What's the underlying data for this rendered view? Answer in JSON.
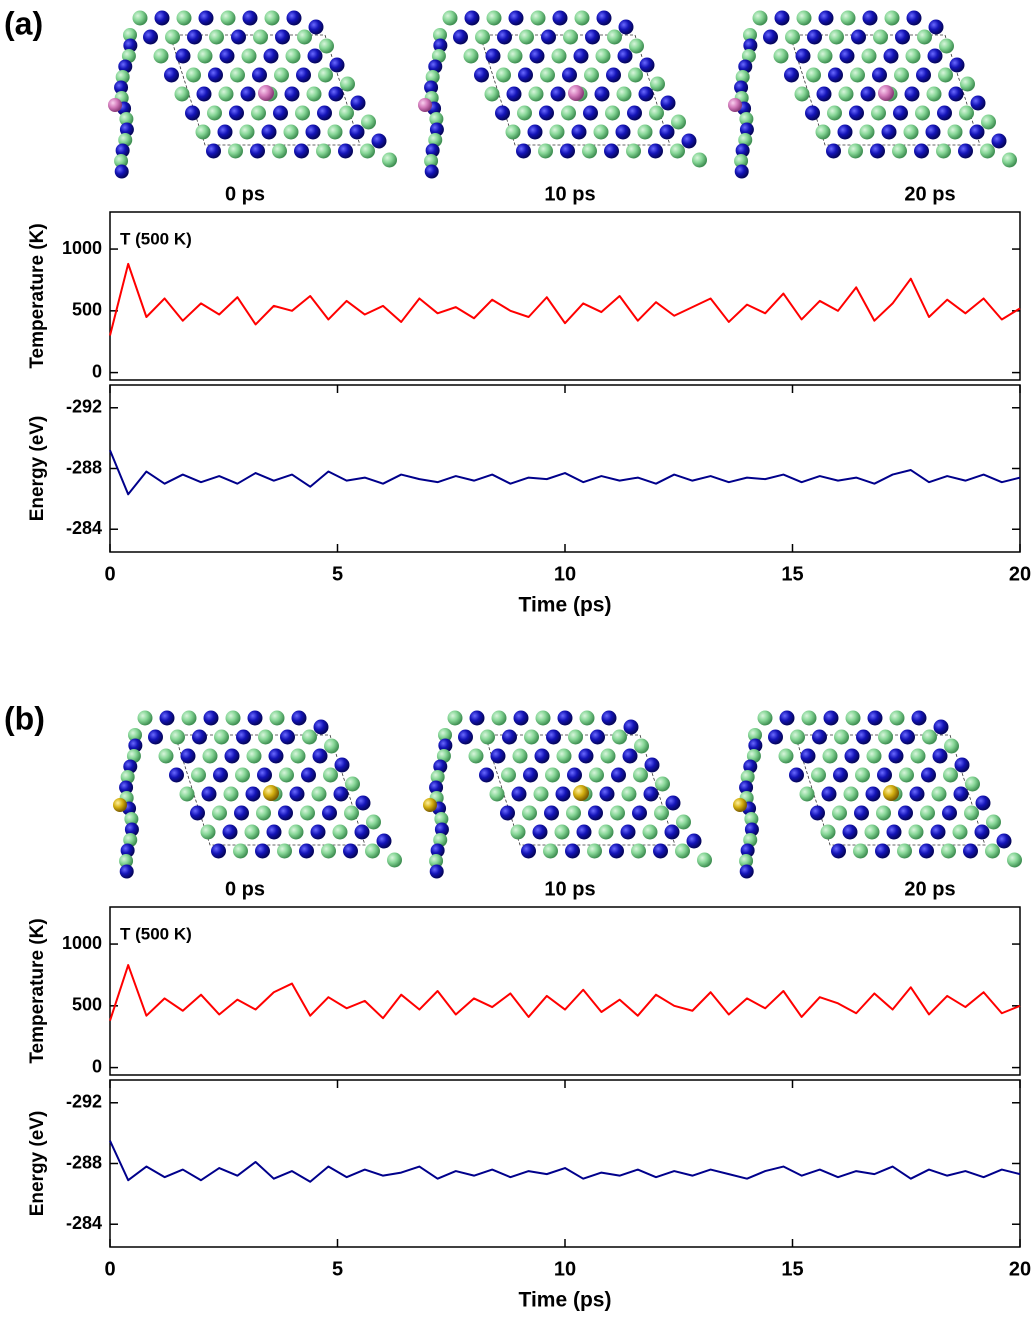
{
  "panels": [
    {
      "label": "(a)",
      "snapshots": [
        "0 ps",
        "10 ps",
        "20 ps"
      ]
    },
    {
      "label": "(b)",
      "snapshots": [
        "0 ps",
        "10 ps",
        "20 ps"
      ]
    }
  ],
  "chart_data": [
    {
      "type": "line",
      "y_label": "Temperature (K)",
      "annotation": "T (500 K)",
      "color": "#ff0000",
      "x": [
        0,
        0.4,
        0.8,
        1.2,
        1.6,
        2,
        2.4,
        2.8,
        3.2,
        3.6,
        4,
        4.4,
        4.8,
        5.2,
        5.6,
        6,
        6.4,
        6.8,
        7.2,
        7.6,
        8,
        8.4,
        8.8,
        9.2,
        9.6,
        10,
        10.4,
        10.8,
        11.2,
        11.6,
        12,
        12.4,
        12.8,
        13.2,
        13.6,
        14,
        14.4,
        14.8,
        15.2,
        15.6,
        16,
        16.4,
        16.8,
        17.2,
        17.6,
        18,
        18.4,
        18.8,
        19.2,
        19.6,
        20
      ],
      "values": [
        300,
        880,
        450,
        600,
        420,
        560,
        470,
        610,
        390,
        540,
        500,
        620,
        430,
        580,
        470,
        540,
        410,
        600,
        480,
        530,
        440,
        590,
        500,
        450,
        610,
        400,
        560,
        490,
        620,
        420,
        570,
        460,
        530,
        600,
        410,
        550,
        480,
        640,
        430,
        580,
        500,
        690,
        420,
        560,
        760,
        450,
        590,
        480,
        600,
        430,
        520
      ],
      "xlim": [
        0,
        20
      ],
      "ylim": [
        -60,
        1300
      ],
      "yticks": [
        0,
        500,
        1000
      ]
    },
    {
      "type": "line",
      "y_label": "Energy (eV)",
      "x_label": "Time (ps)",
      "color": "#00008b",
      "x": [
        0,
        0.4,
        0.8,
        1.2,
        1.6,
        2,
        2.4,
        2.8,
        3.2,
        3.6,
        4,
        4.4,
        4.8,
        5.2,
        5.6,
        6,
        6.4,
        6.8,
        7.2,
        7.6,
        8,
        8.4,
        8.8,
        9.2,
        9.6,
        10,
        10.4,
        10.8,
        11.2,
        11.6,
        12,
        12.4,
        12.8,
        13.2,
        13.6,
        14,
        14.4,
        14.8,
        15.2,
        15.6,
        16,
        16.4,
        16.8,
        17.2,
        17.6,
        18,
        18.4,
        18.8,
        19.2,
        19.6,
        20
      ],
      "values": [
        -289.2,
        -286.3,
        -287.8,
        -287.0,
        -287.6,
        -287.1,
        -287.5,
        -287.0,
        -287.7,
        -287.2,
        -287.6,
        -286.8,
        -287.8,
        -287.2,
        -287.4,
        -287.0,
        -287.6,
        -287.3,
        -287.1,
        -287.5,
        -287.2,
        -287.6,
        -287.0,
        -287.4,
        -287.3,
        -287.7,
        -287.1,
        -287.5,
        -287.2,
        -287.4,
        -287.0,
        -287.6,
        -287.2,
        -287.5,
        -287.1,
        -287.4,
        -287.3,
        -287.6,
        -287.1,
        -287.5,
        -287.2,
        -287.4,
        -287.0,
        -287.6,
        -287.9,
        -287.1,
        -287.5,
        -287.2,
        -287.6,
        -287.1,
        -287.4
      ],
      "xlim": [
        0,
        20
      ],
      "xticks": [
        0,
        5,
        10,
        15,
        20
      ],
      "ylim": [
        -282.5,
        -293.5
      ],
      "yticks": [
        -292,
        -288,
        -284
      ]
    },
    {
      "type": "line",
      "y_label": "Temperature (K)",
      "annotation": "T (500 K)",
      "color": "#ff0000",
      "x": [
        0,
        0.4,
        0.8,
        1.2,
        1.6,
        2,
        2.4,
        2.8,
        3.2,
        3.6,
        4,
        4.4,
        4.8,
        5.2,
        5.6,
        6,
        6.4,
        6.8,
        7.2,
        7.6,
        8,
        8.4,
        8.8,
        9.2,
        9.6,
        10,
        10.4,
        10.8,
        11.2,
        11.6,
        12,
        12.4,
        12.8,
        13.2,
        13.6,
        14,
        14.4,
        14.8,
        15.2,
        15.6,
        16,
        16.4,
        16.8,
        17.2,
        17.6,
        18,
        18.4,
        18.8,
        19.2,
        19.6,
        20
      ],
      "values": [
        380,
        830,
        420,
        560,
        460,
        590,
        430,
        550,
        470,
        610,
        680,
        420,
        570,
        480,
        540,
        400,
        590,
        470,
        620,
        430,
        560,
        490,
        600,
        410,
        580,
        470,
        630,
        450,
        550,
        420,
        590,
        500,
        460,
        610,
        430,
        560,
        480,
        620,
        410,
        570,
        520,
        440,
        600,
        470,
        650,
        430,
        580,
        490,
        610,
        440,
        500
      ],
      "xlim": [
        0,
        20
      ],
      "ylim": [
        -60,
        1300
      ],
      "yticks": [
        0,
        500,
        1000
      ]
    },
    {
      "type": "line",
      "y_label": "Energy (eV)",
      "x_label": "Time (ps)",
      "color": "#00008b",
      "x": [
        0,
        0.4,
        0.8,
        1.2,
        1.6,
        2,
        2.4,
        2.8,
        3.2,
        3.6,
        4,
        4.4,
        4.8,
        5.2,
        5.6,
        6,
        6.4,
        6.8,
        7.2,
        7.6,
        8,
        8.4,
        8.8,
        9.2,
        9.6,
        10,
        10.4,
        10.8,
        11.2,
        11.6,
        12,
        12.4,
        12.8,
        13.2,
        13.6,
        14,
        14.4,
        14.8,
        15.2,
        15.6,
        16,
        16.4,
        16.8,
        17.2,
        17.6,
        18,
        18.4,
        18.8,
        19.2,
        19.6,
        20
      ],
      "values": [
        -289.5,
        -286.9,
        -287.8,
        -287.1,
        -287.6,
        -286.9,
        -287.7,
        -287.2,
        -288.1,
        -287.0,
        -287.5,
        -286.8,
        -287.8,
        -287.1,
        -287.6,
        -287.2,
        -287.4,
        -287.8,
        -287.0,
        -287.5,
        -287.2,
        -287.6,
        -287.1,
        -287.5,
        -287.3,
        -287.7,
        -287.0,
        -287.4,
        -287.2,
        -287.6,
        -287.1,
        -287.5,
        -287.2,
        -287.6,
        -287.3,
        -287.0,
        -287.5,
        -287.8,
        -287.2,
        -287.6,
        -287.1,
        -287.5,
        -287.3,
        -287.8,
        -287.0,
        -287.6,
        -287.2,
        -287.5,
        -287.1,
        -287.6,
        -287.3
      ],
      "xlim": [
        0,
        20
      ],
      "xticks": [
        0,
        5,
        10,
        15,
        20
      ],
      "ylim": [
        -282.5,
        -293.5
      ],
      "yticks": [
        -292,
        -288,
        -284
      ]
    }
  ]
}
